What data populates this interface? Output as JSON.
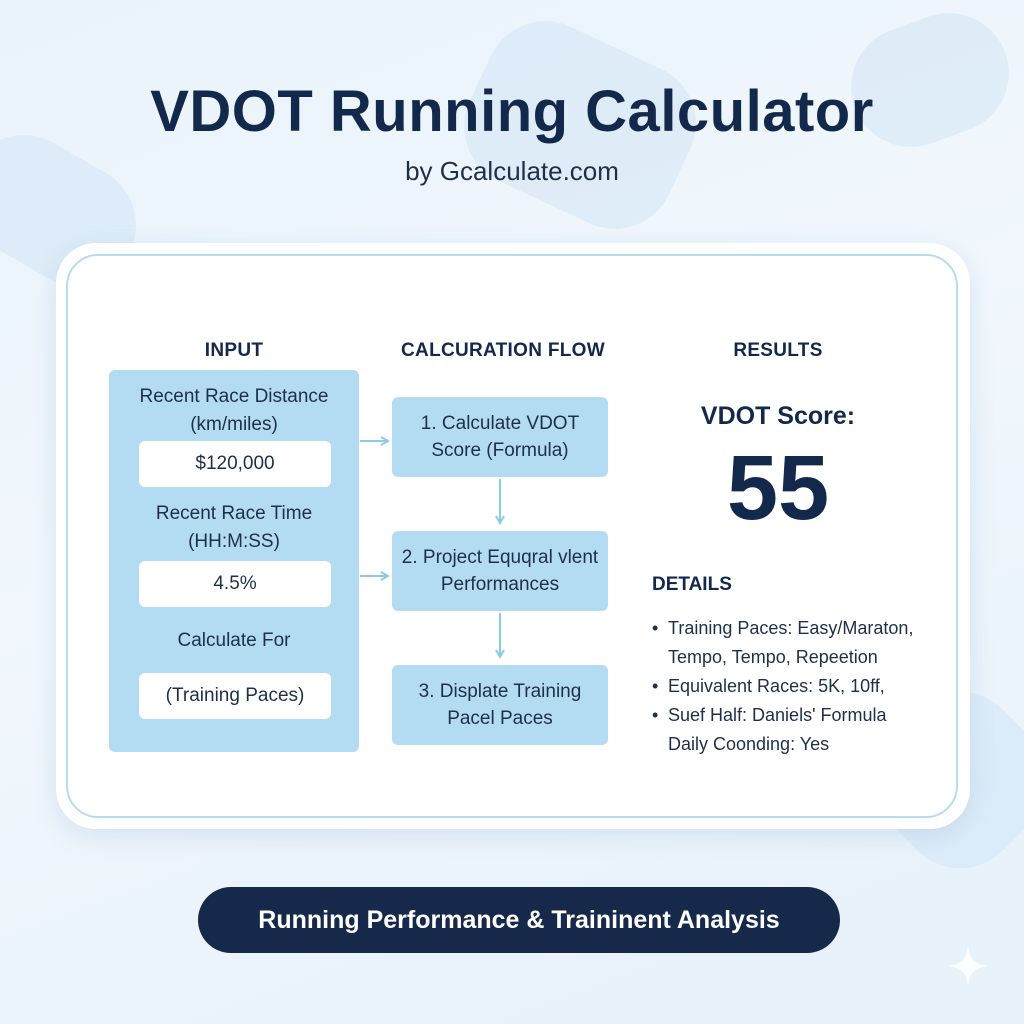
{
  "header": {
    "title": "VDOT Running Calculator",
    "subtitle": "by Gcalculate.com"
  },
  "columns": {
    "input": "INPUT",
    "flow": "CALCURATION FLOW",
    "results": "RESULTS"
  },
  "input_panel": {
    "distance_label_line1": "Recent Race Distance",
    "distance_label_line2": "(km/miles)",
    "distance_value": "$120,000",
    "time_label_line1": "Recent Race Time",
    "time_label_line2": "(HH:M:SS)",
    "time_value": "4.5%",
    "calc_for_label": "Calculate For",
    "calc_for_value": "(Training Paces)"
  },
  "flow_steps": [
    {
      "line1": "1. Calculate VDOT",
      "line2": "Score (Formula)"
    },
    {
      "line1": "2. Project Equqral vlent",
      "line2": "Performances"
    },
    {
      "line1": "3. Displate Training",
      "line2": "Pacel Paces"
    }
  ],
  "results": {
    "score_label": "VDOT Score:",
    "score_value": "55",
    "details_heading": "DETAILS",
    "details": [
      "Training Paces: Easy/Maraton,",
      "Tempo, Tempo, Repeetion",
      "Equivalent Races: 5K, 10ff,",
      "Suef Half: Daniels' Formula",
      "Daily Coonding: Yes"
    ]
  },
  "footer": {
    "label": "Running Performance & Traininent Analysis"
  },
  "colors": {
    "navy": "#13294b",
    "panel_blue": "#b3dcf2",
    "arrow_blue": "#8ccbe8",
    "footer_bg": "#16294a"
  }
}
